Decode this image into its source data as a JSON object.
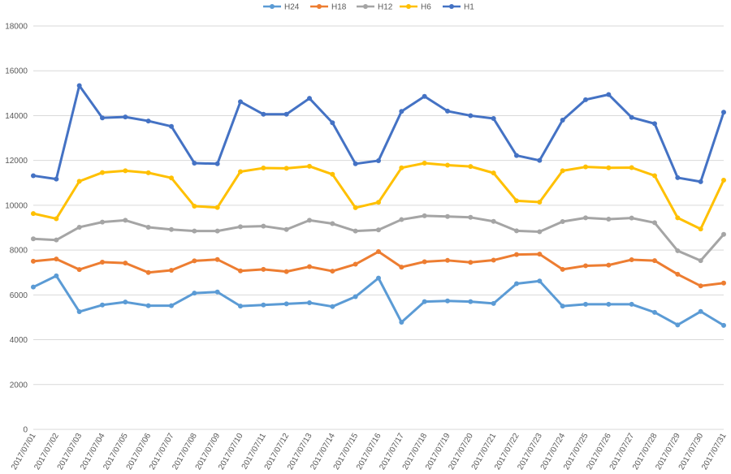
{
  "chart_data": {
    "type": "line",
    "title": "",
    "xlabel": "",
    "ylabel": "",
    "ylim": [
      0,
      18000
    ],
    "yticks": [
      0,
      2000,
      4000,
      6000,
      8000,
      10000,
      12000,
      14000,
      16000,
      18000
    ],
    "grid": "horizontal",
    "legend_position": "top-center",
    "categories": [
      "2017/07/01",
      "2017/07/02",
      "2017/07/03",
      "2017/07/04",
      "2017/07/05",
      "2017/07/06",
      "2017/07/07",
      "2017/07/08",
      "2017/07/09",
      "2017/07/10",
      "2017/07/11",
      "2017/07/12",
      "2017/07/13",
      "2017/07/14",
      "2017/07/15",
      "2017/07/16",
      "2017/07/17",
      "2017/07/18",
      "2017/07/19",
      "2017/07/20",
      "2017/07/21",
      "2017/07/22",
      "2017/07/23",
      "2017/07/24",
      "2017/07/25",
      "2017/07/26",
      "2017/07/27",
      "2017/07/28",
      "2017/07/29",
      "2017/07/30",
      "2017/07/31"
    ],
    "series": [
      {
        "name": "H24",
        "color": "#5b9bd5",
        "values": [
          6350,
          6850,
          5250,
          5550,
          5680,
          5520,
          5520,
          6080,
          6130,
          5500,
          5550,
          5600,
          5650,
          5480,
          5920,
          6750,
          4780,
          5700,
          5730,
          5700,
          5620,
          6500,
          6620,
          5500,
          5580,
          5580,
          5580,
          5220,
          4660,
          5260,
          4640
        ]
      },
      {
        "name": "H18",
        "color": "#ed7d31",
        "values": [
          7500,
          7600,
          7130,
          7460,
          7420,
          7000,
          7100,
          7520,
          7580,
          7070,
          7140,
          7040,
          7260,
          7060,
          7370,
          7930,
          7240,
          7480,
          7540,
          7450,
          7550,
          7800,
          7820,
          7140,
          7300,
          7330,
          7570,
          7530,
          6920,
          6400,
          6530
        ]
      },
      {
        "name": "H12",
        "color": "#a5a5a5",
        "values": [
          8500,
          8450,
          9020,
          9250,
          9330,
          9020,
          8920,
          8850,
          8850,
          9040,
          9070,
          8920,
          9330,
          9180,
          8850,
          8900,
          9360,
          9530,
          9500,
          9460,
          9280,
          8860,
          8820,
          9270,
          9440,
          9380,
          9430,
          9220,
          7970,
          7530,
          8700
        ]
      },
      {
        "name": "H6",
        "color": "#ffc000",
        "values": [
          9630,
          9400,
          11070,
          11460,
          11540,
          11450,
          11220,
          9960,
          9900,
          11500,
          11660,
          11650,
          11740,
          11380,
          9890,
          10130,
          11670,
          11880,
          11790,
          11730,
          11440,
          10200,
          10140,
          11540,
          11710,
          11670,
          11680,
          11320,
          9440,
          8940,
          11120
        ]
      },
      {
        "name": "H1",
        "color": "#4472c4",
        "values": [
          11320,
          11170,
          15340,
          13900,
          13940,
          13760,
          13520,
          11880,
          11850,
          14620,
          14060,
          14060,
          14770,
          13680,
          11850,
          11990,
          14190,
          14860,
          14200,
          14000,
          13870,
          12220,
          12000,
          13800,
          14710,
          14940,
          13920,
          13640,
          11230,
          11050,
          14150
        ]
      }
    ]
  }
}
